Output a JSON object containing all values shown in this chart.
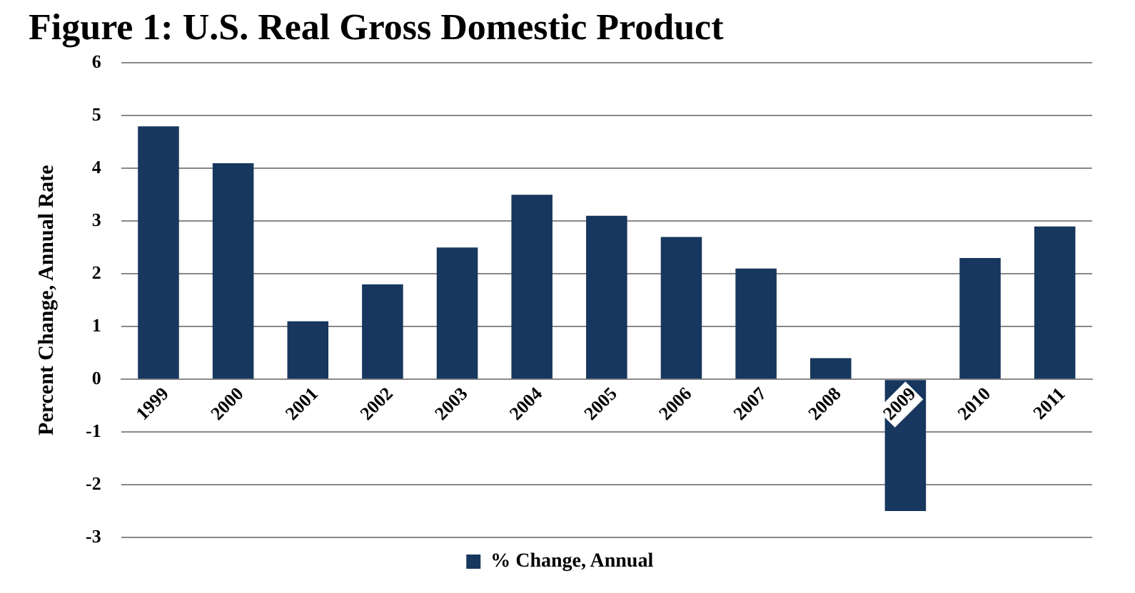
{
  "chart_data": {
    "type": "bar",
    "title": "Figure 1: U.S. Real Gross Domestic Product",
    "ylabel": "Percent Change, Annual Rate",
    "categories": [
      "1999",
      "2000",
      "2001",
      "2002",
      "2003",
      "2004",
      "2005",
      "2006",
      "2007",
      "2008",
      "2009",
      "2010",
      "2011"
    ],
    "series": [
      {
        "name": "% Change, Annual",
        "color": "#17375e",
        "values": [
          4.8,
          4.1,
          1.1,
          1.8,
          2.5,
          3.5,
          3.1,
          2.7,
          2.1,
          0.4,
          -2.5,
          2.3,
          2.9
        ]
      }
    ],
    "ylim": [
      -3,
      6
    ],
    "yticks": [
      -3,
      -2,
      -1,
      0,
      1,
      2,
      3,
      4,
      5,
      6
    ],
    "grid": "y",
    "legend": "bottom"
  }
}
